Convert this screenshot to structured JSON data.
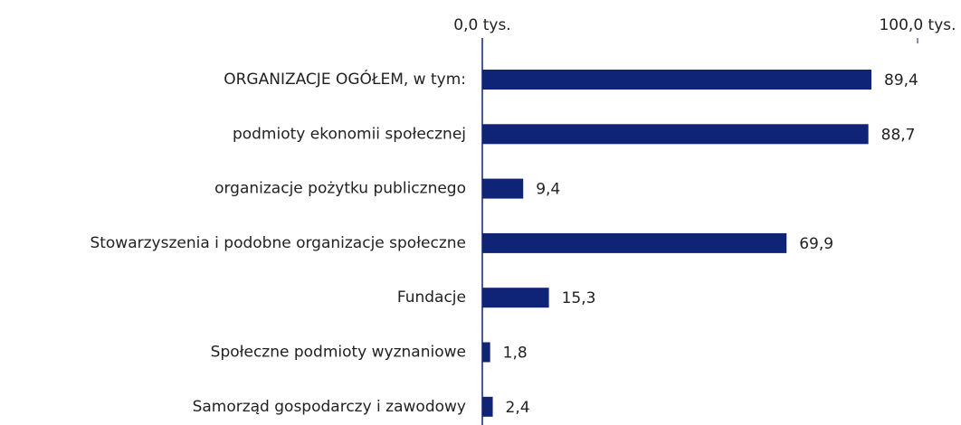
{
  "chart_data": {
    "type": "bar",
    "orientation": "horizontal",
    "categories": [
      "ORGANIZACJE OGÓŁEM, w tym:",
      "podmioty ekonomii społecznej",
      "organizacje pożytku publicznego",
      "Stowarzyszenia i podobne organizacje społeczne",
      "Fundacje",
      "Społeczne podmioty wyznaniowe",
      "Samorząd gospodarczy i zawodowy"
    ],
    "values": [
      89.4,
      88.7,
      9.4,
      69.9,
      15.3,
      1.8,
      2.4
    ],
    "value_labels": [
      "89,4",
      "88,7",
      "9,4",
      "69,9",
      "15,3",
      "1,8",
      "2,4"
    ],
    "color": "#0f2377",
    "xlim": [
      0,
      100
    ],
    "xticks": [
      {
        "value": 0,
        "label": "0,0 tys."
      },
      {
        "value": 100,
        "label": "100,0 tys."
      }
    ]
  }
}
